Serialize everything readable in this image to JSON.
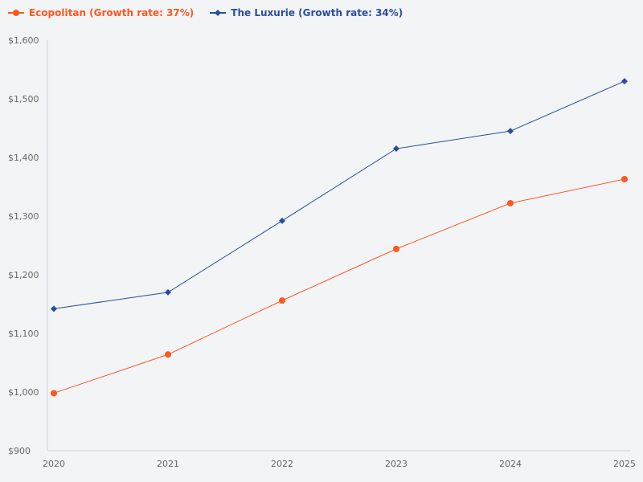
{
  "chart_data": {
    "type": "line",
    "x": [
      "2020",
      "2021",
      "2022",
      "2023",
      "2024",
      "2025"
    ],
    "series": [
      {
        "name": "Ecopolitan (Growth rate: 37%)",
        "color": "#ff5722",
        "marker": "circle",
        "values": [
          998,
          1064,
          1156,
          1244,
          1322,
          1363
        ]
      },
      {
        "name": "The Luxurie (Growth rate: 34%)",
        "color": "#2b4e9b",
        "marker": "diamond",
        "values": [
          1142,
          1170,
          1292,
          1415,
          1445,
          1530
        ]
      }
    ],
    "ylim": [
      900,
      1600
    ],
    "yticks": [
      "$900",
      "$1,000",
      "$1,100",
      "$1,200",
      "$1,300",
      "$1,400",
      "$1,500",
      "$1,600"
    ],
    "grid": false,
    "legend": "top-left"
  }
}
